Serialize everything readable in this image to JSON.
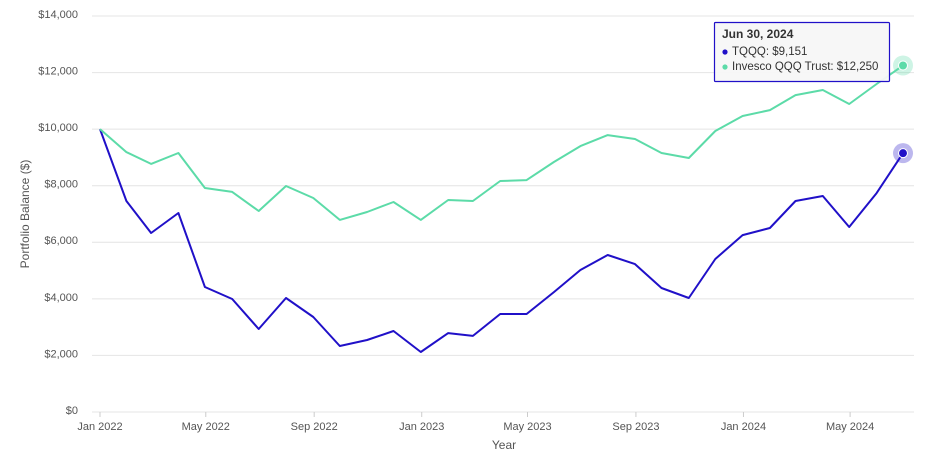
{
  "chart_data": {
    "type": "line",
    "xlabel": "Year",
    "ylabel": "Portfolio Balance ($)",
    "x": [
      "2022-01-01",
      "2022-01-31",
      "2022-02-28",
      "2022-03-31",
      "2022-04-30",
      "2022-05-31",
      "2022-06-30",
      "2022-07-31",
      "2022-08-31",
      "2022-09-30",
      "2022-10-31",
      "2022-11-30",
      "2022-12-31",
      "2023-01-31",
      "2023-02-28",
      "2023-03-31",
      "2023-04-30",
      "2023-05-31",
      "2023-06-30",
      "2023-07-31",
      "2023-08-31",
      "2023-09-30",
      "2023-10-31",
      "2023-11-30",
      "2023-12-31",
      "2024-01-31",
      "2024-02-29",
      "2024-03-31",
      "2024-04-30",
      "2024-05-31",
      "2024-06-30"
    ],
    "series": [
      {
        "name": "TQQQ",
        "color": "#2010c8",
        "values": [
          10000,
          7460,
          6330,
          7035,
          4420,
          3995,
          2935,
          4030,
          3360,
          2335,
          2545,
          2865,
          2120,
          2790,
          2690,
          3465,
          3465,
          4240,
          5020,
          5550,
          5230,
          4385,
          4030,
          5410,
          6255,
          6505,
          7460,
          7635,
          6540,
          7740,
          9151
        ]
      },
      {
        "name": "Invesco QQQ Trust",
        "color": "#5cdba8",
        "values": [
          10000,
          9190,
          8770,
          9155,
          7920,
          7780,
          7105,
          7990,
          7565,
          6790,
          7070,
          7425,
          6790,
          7495,
          7460,
          8165,
          8200,
          8840,
          9400,
          9790,
          9650,
          9155,
          8980,
          9935,
          10465,
          10675,
          11205,
          11385,
          10890,
          11595,
          12250
        ]
      }
    ],
    "xlim": [
      "2022-01-01",
      "2024-06-30"
    ],
    "xticks": [
      {
        "value": "2022-01-01",
        "label": "Jan 2022"
      },
      {
        "value": "2022-05-01",
        "label": "May 2022"
      },
      {
        "value": "2022-09-01",
        "label": "Sep 2022"
      },
      {
        "value": "2023-01-01",
        "label": "Jan 2023"
      },
      {
        "value": "2023-05-01",
        "label": "May 2023"
      },
      {
        "value": "2023-09-01",
        "label": "Sep 2023"
      },
      {
        "value": "2024-01-01",
        "label": "Jan 2024"
      },
      {
        "value": "2024-05-01",
        "label": "May 2024"
      }
    ],
    "ylim": [
      0,
      14000
    ],
    "yticks": [
      {
        "value": 0,
        "label": "$0"
      },
      {
        "value": 2000,
        "label": "$2,000"
      },
      {
        "value": 4000,
        "label": "$4,000"
      },
      {
        "value": 6000,
        "label": "$6,000"
      },
      {
        "value": 8000,
        "label": "$8,000"
      },
      {
        "value": 10000,
        "label": "$10,000"
      },
      {
        "value": 12000,
        "label": "$12,000"
      },
      {
        "value": 14000,
        "label": "$14,000"
      }
    ],
    "grid": true,
    "tooltip": {
      "title": "Jun 30, 2024",
      "items": [
        "TQQQ: $9,151",
        "Invesco QQQ Trust: $12,250"
      ]
    }
  }
}
